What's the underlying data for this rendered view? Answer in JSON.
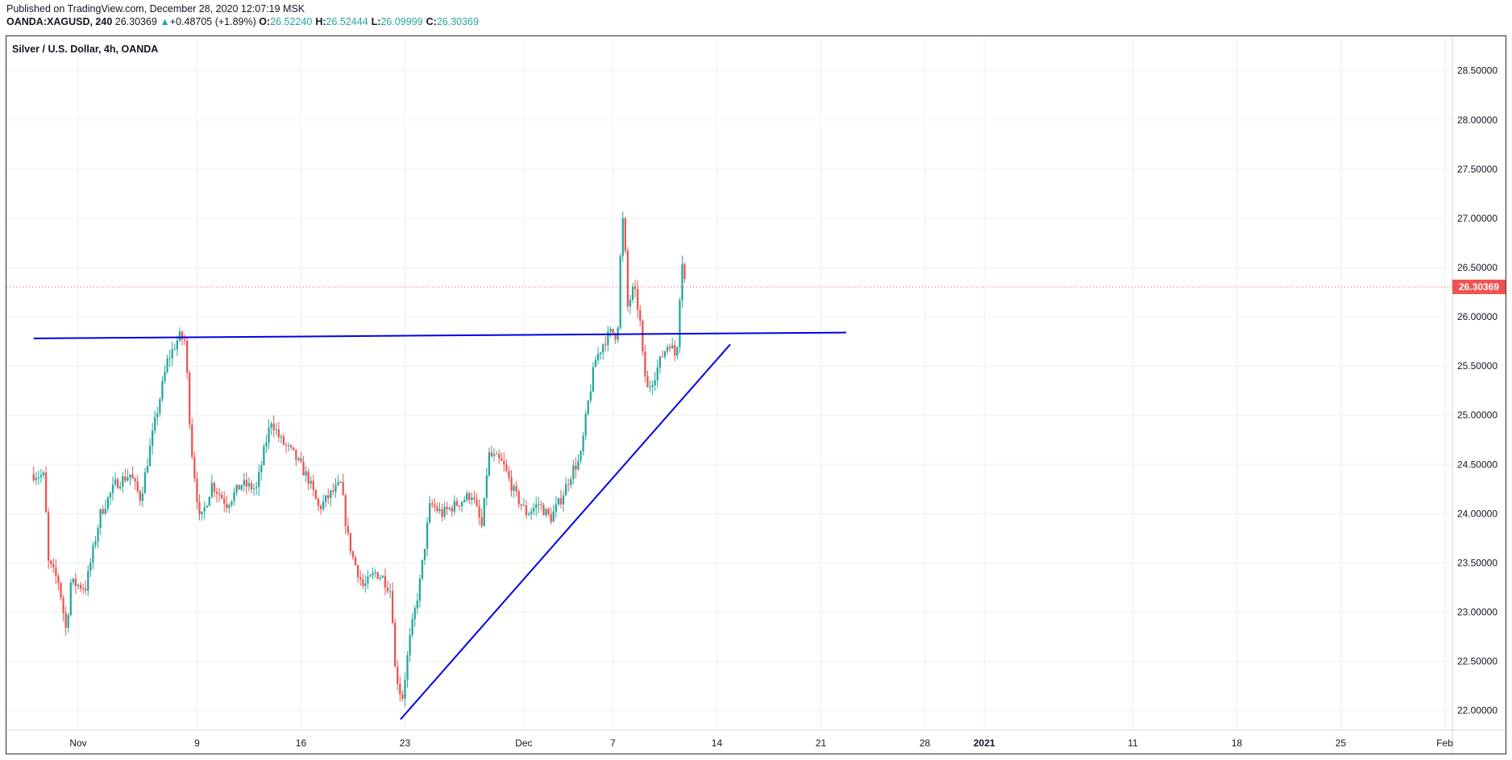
{
  "header": {
    "published": "Published on TradingView.com, December 28, 2020 12:07:19 MSK",
    "symbol": "OANDA:XAGUSD, 240",
    "last": "26.30369",
    "change_arrow": "▲",
    "change": "+0.48705 (+1.89%)",
    "o_label": "O:",
    "o_value": "26.52240",
    "h_label": "H:",
    "h_value": "26.52444",
    "l_label": "L:",
    "l_value": "26.09999",
    "c_label": "C:",
    "c_value": "26.30369"
  },
  "chart_data": {
    "type": "candlestick",
    "title": "Silver / U.S. Dollar, 4h, OANDA",
    "x_tick_labels": [
      "Nov",
      "9",
      "16",
      "23",
      "Dec",
      "7",
      "14",
      "21",
      "28",
      "2021",
      "11",
      "18",
      "25",
      "Feb"
    ],
    "y_tick_labels": [
      "22.00000",
      "22.50000",
      "23.00000",
      "23.50000",
      "24.00000",
      "24.50000",
      "25.00000",
      "25.50000",
      "26.00000",
      "26.50000",
      "27.00000",
      "27.50000",
      "28.00000",
      "28.50000"
    ],
    "ylim": [
      21.8,
      28.85
    ],
    "current_price_label": "26.30369",
    "current_price": 26.30369,
    "colors": {
      "up": "#26a69a",
      "down": "#ef5350",
      "trendline": "#0000e6",
      "grid": "#eef0f3"
    },
    "anchors": [
      {
        "d": -3.0,
        "p": 24.4
      },
      {
        "d": -2.3,
        "p": 24.38
      },
      {
        "d": -2.0,
        "p": 23.5
      },
      {
        "d": -1.3,
        "p": 23.3
      },
      {
        "d": -0.8,
        "p": 22.8
      },
      {
        "d": -0.5,
        "p": 23.3
      },
      {
        "d": 0.5,
        "p": 23.25
      },
      {
        "d": 1.5,
        "p": 24.0
      },
      {
        "d": 2.5,
        "p": 24.3
      },
      {
        "d": 3.5,
        "p": 24.4
      },
      {
        "d": 4.2,
        "p": 24.15
      },
      {
        "d": 5.0,
        "p": 24.8
      },
      {
        "d": 6.0,
        "p": 25.55
      },
      {
        "d": 6.8,
        "p": 25.8
      },
      {
        "d": 7.2,
        "p": 25.75
      },
      {
        "d": 7.6,
        "p": 24.7
      },
      {
        "d": 8.2,
        "p": 23.9
      },
      {
        "d": 9.0,
        "p": 24.3
      },
      {
        "d": 10.0,
        "p": 24.1
      },
      {
        "d": 11.0,
        "p": 24.3
      },
      {
        "d": 12.0,
        "p": 24.25
      },
      {
        "d": 12.6,
        "p": 24.7
      },
      {
        "d": 13.0,
        "p": 24.95
      },
      {
        "d": 13.6,
        "p": 24.75
      },
      {
        "d": 14.5,
        "p": 24.6
      },
      {
        "d": 15.5,
        "p": 24.35
      },
      {
        "d": 16.2,
        "p": 24.05
      },
      {
        "d": 17.0,
        "p": 24.2
      },
      {
        "d": 17.7,
        "p": 24.3
      },
      {
        "d": 18.1,
        "p": 23.8
      },
      {
        "d": 18.5,
        "p": 23.55
      },
      {
        "d": 19.2,
        "p": 23.25
      },
      {
        "d": 20.0,
        "p": 23.4
      },
      {
        "d": 20.5,
        "p": 23.35
      },
      {
        "d": 21.1,
        "p": 23.2
      },
      {
        "d": 21.3,
        "p": 22.45
      },
      {
        "d": 21.8,
        "p": 22.1
      },
      {
        "d": 22.3,
        "p": 22.7
      },
      {
        "d": 23.0,
        "p": 23.3
      },
      {
        "d": 23.7,
        "p": 24.1
      },
      {
        "d": 24.5,
        "p": 24.0
      },
      {
        "d": 25.5,
        "p": 24.1
      },
      {
        "d": 26.5,
        "p": 24.2
      },
      {
        "d": 27.2,
        "p": 23.85
      },
      {
        "d": 27.6,
        "p": 24.6
      },
      {
        "d": 28.2,
        "p": 24.55
      },
      {
        "d": 28.6,
        "p": 24.5
      },
      {
        "d": 29.4,
        "p": 24.2
      },
      {
        "d": 30.2,
        "p": 24.0
      },
      {
        "d": 31.0,
        "p": 24.1
      },
      {
        "d": 31.8,
        "p": 23.95
      },
      {
        "d": 32.5,
        "p": 24.15
      },
      {
        "d": 33.3,
        "p": 24.45
      },
      {
        "d": 33.8,
        "p": 24.55
      },
      {
        "d": 34.3,
        "p": 25.1
      },
      {
        "d": 34.8,
        "p": 25.55
      },
      {
        "d": 35.4,
        "p": 25.75
      },
      {
        "d": 35.9,
        "p": 25.85
      },
      {
        "d": 36.3,
        "p": 25.8
      },
      {
        "d": 36.5,
        "p": 26.6
      },
      {
        "d": 36.7,
        "p": 27.05
      },
      {
        "d": 37.0,
        "p": 26.1
      },
      {
        "d": 37.4,
        "p": 26.3
      },
      {
        "d": 37.8,
        "p": 26.0
      },
      {
        "d": 38.0,
        "p": 25.6
      },
      {
        "d": 38.3,
        "p": 25.25
      },
      {
        "d": 38.8,
        "p": 25.4
      },
      {
        "d": 39.3,
        "p": 25.6
      },
      {
        "d": 39.8,
        "p": 25.75
      },
      {
        "d": 40.2,
        "p": 25.6
      },
      {
        "d": 40.4,
        "p": 25.8
      },
      {
        "d": 40.6,
        "p": 26.65
      },
      {
        "d": 40.9,
        "p": 26.3
      }
    ],
    "trendlines": [
      {
        "name": "horizontal-resistance-line",
        "x1": -3.0,
        "y1": 25.78,
        "x2": 51.7,
        "y2": 25.84
      },
      {
        "name": "ascending-support-line",
        "x1": 21.7,
        "y1": 21.91,
        "x2": 43.9,
        "y2": 25.72
      }
    ]
  }
}
